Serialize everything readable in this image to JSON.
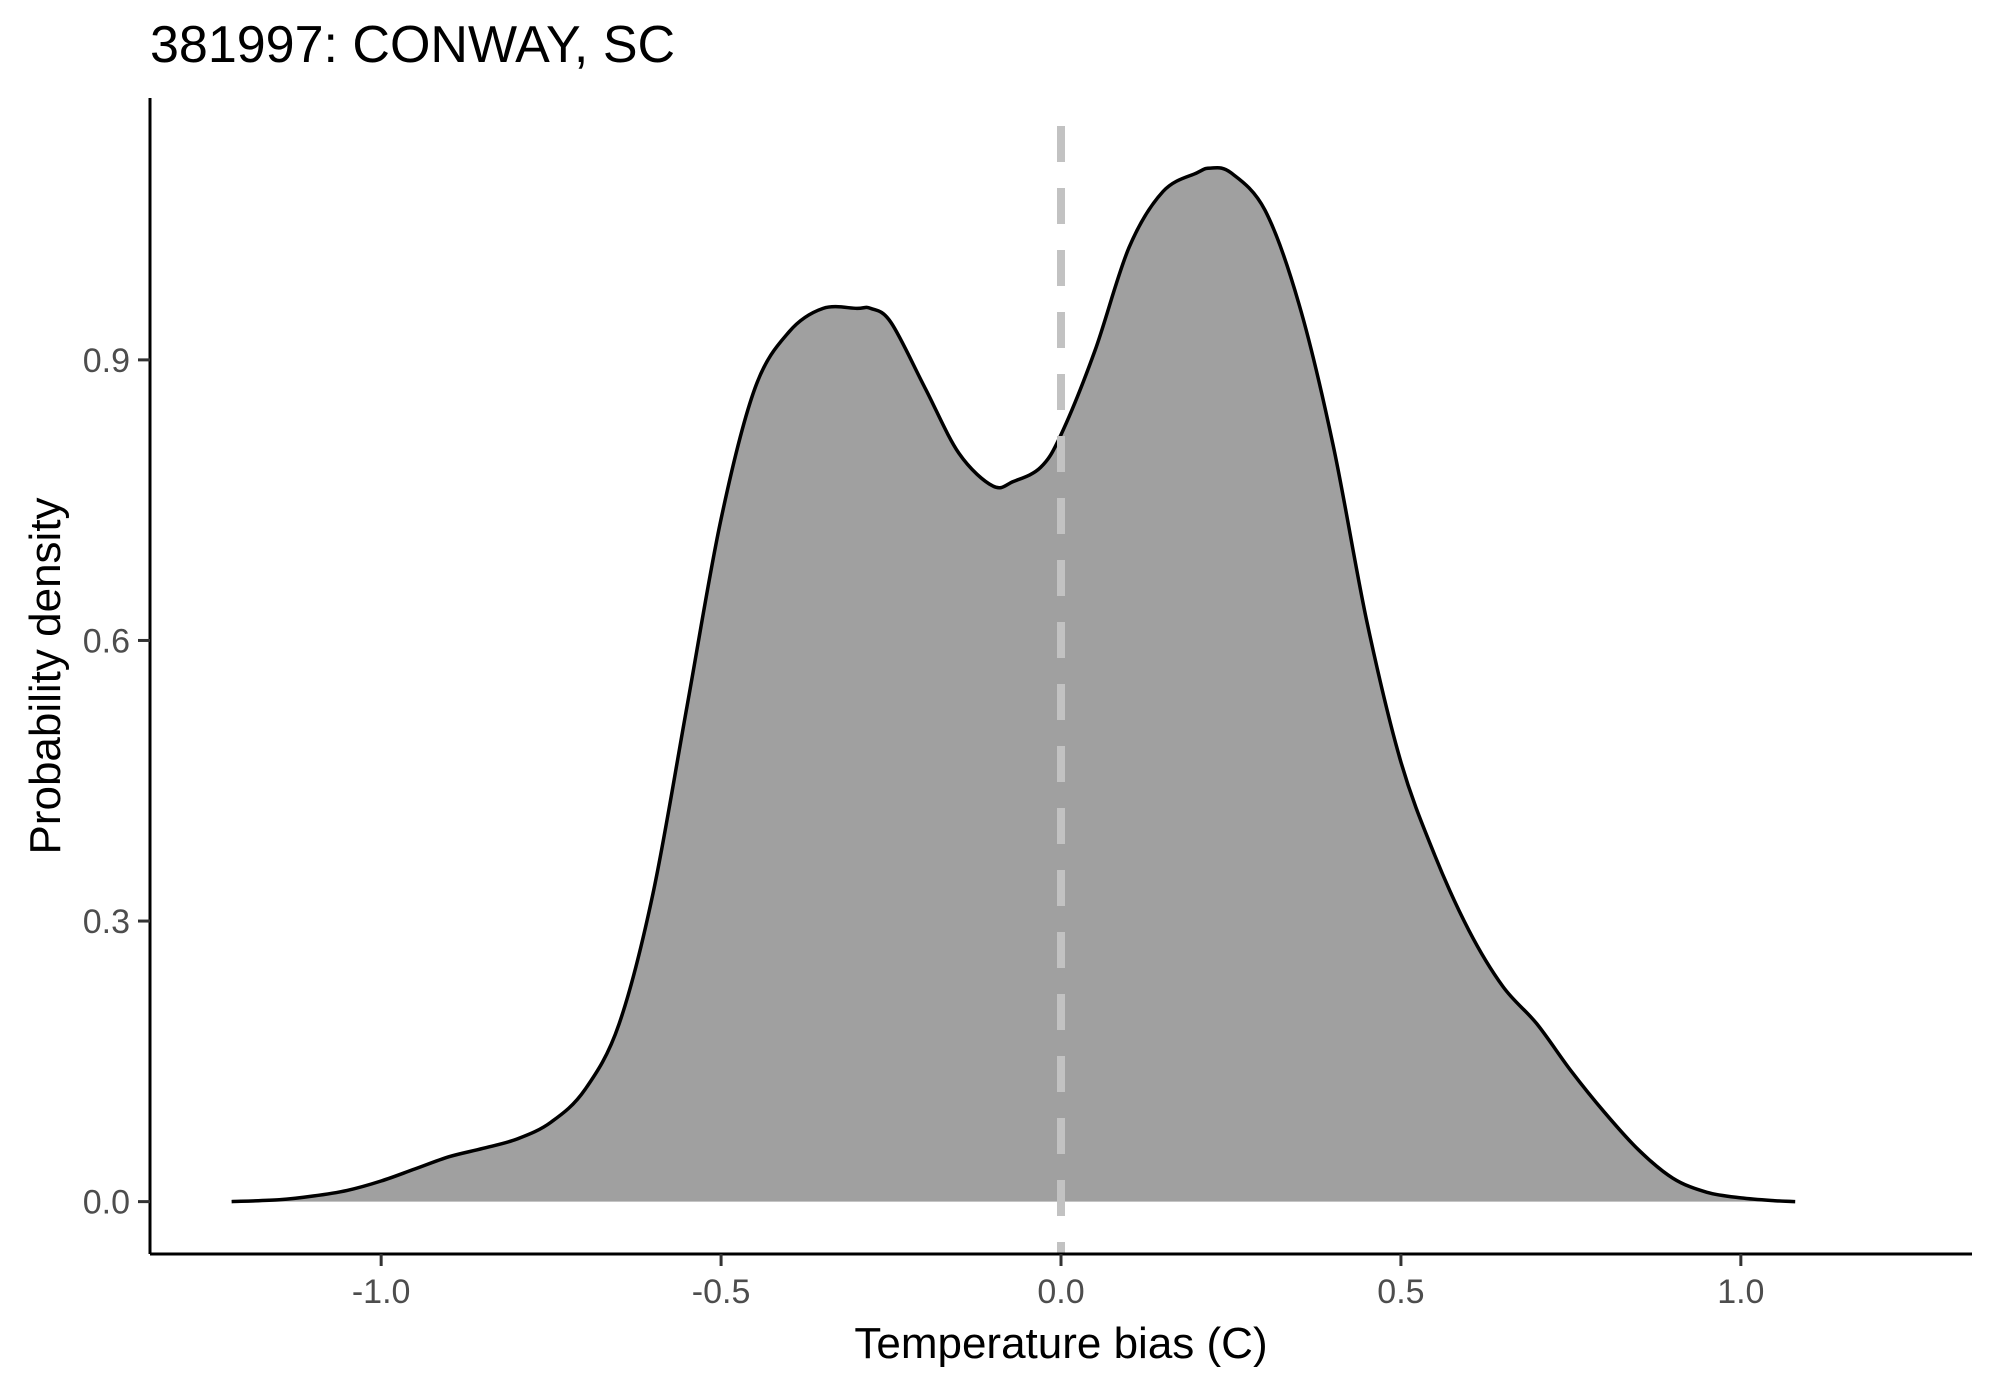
{
  "chart_data": {
    "type": "area",
    "title": "381997: CONWAY, SC",
    "xlabel": "Temperature bias (C)",
    "ylabel": "Probability density",
    "xlim": [
      -1.34,
      1.34
    ],
    "ylim": [
      -0.056,
      1.18
    ],
    "x_ticks": [
      -1.0,
      -0.5,
      0.0,
      0.5,
      1.0
    ],
    "x_tick_labels": [
      "-1.0",
      "-0.5",
      "0.0",
      "0.5",
      "1.0"
    ],
    "y_ticks": [
      0.0,
      0.3,
      0.6,
      0.9
    ],
    "y_tick_labels": [
      "0.0",
      "0.3",
      "0.6",
      "0.9"
    ],
    "grid": false,
    "reference_line": {
      "x": 0.0,
      "style": "dashed",
      "color": "#c2c2c2"
    },
    "fill_color": "#a0a0a0",
    "line_color": "#000000",
    "series": [
      {
        "x": [
          -1.22,
          -1.15,
          -1.1,
          -1.05,
          -1.0,
          -0.95,
          -0.9,
          -0.85,
          -0.8,
          -0.75,
          -0.7,
          -0.65,
          -0.6,
          -0.55,
          -0.5,
          -0.45,
          -0.4,
          -0.35,
          -0.3,
          -0.28,
          -0.25,
          -0.2,
          -0.15,
          -0.1,
          -0.07,
          -0.03,
          0.0,
          0.05,
          0.1,
          0.15,
          0.2,
          0.22,
          0.25,
          0.3,
          0.35,
          0.4,
          0.45,
          0.5,
          0.55,
          0.6,
          0.65,
          0.7,
          0.75,
          0.8,
          0.85,
          0.9,
          0.95,
          1.0,
          1.05,
          1.08
        ],
        "y": [
          0.0,
          0.002,
          0.006,
          0.012,
          0.022,
          0.035,
          0.048,
          0.057,
          0.067,
          0.085,
          0.12,
          0.19,
          0.33,
          0.53,
          0.73,
          0.87,
          0.93,
          0.955,
          0.955,
          0.955,
          0.94,
          0.87,
          0.8,
          0.765,
          0.77,
          0.785,
          0.82,
          0.91,
          1.02,
          1.08,
          1.1,
          1.105,
          1.1,
          1.06,
          0.96,
          0.81,
          0.62,
          0.47,
          0.37,
          0.29,
          0.23,
          0.19,
          0.14,
          0.095,
          0.055,
          0.025,
          0.01,
          0.004,
          0.001,
          0.0
        ]
      }
    ]
  }
}
